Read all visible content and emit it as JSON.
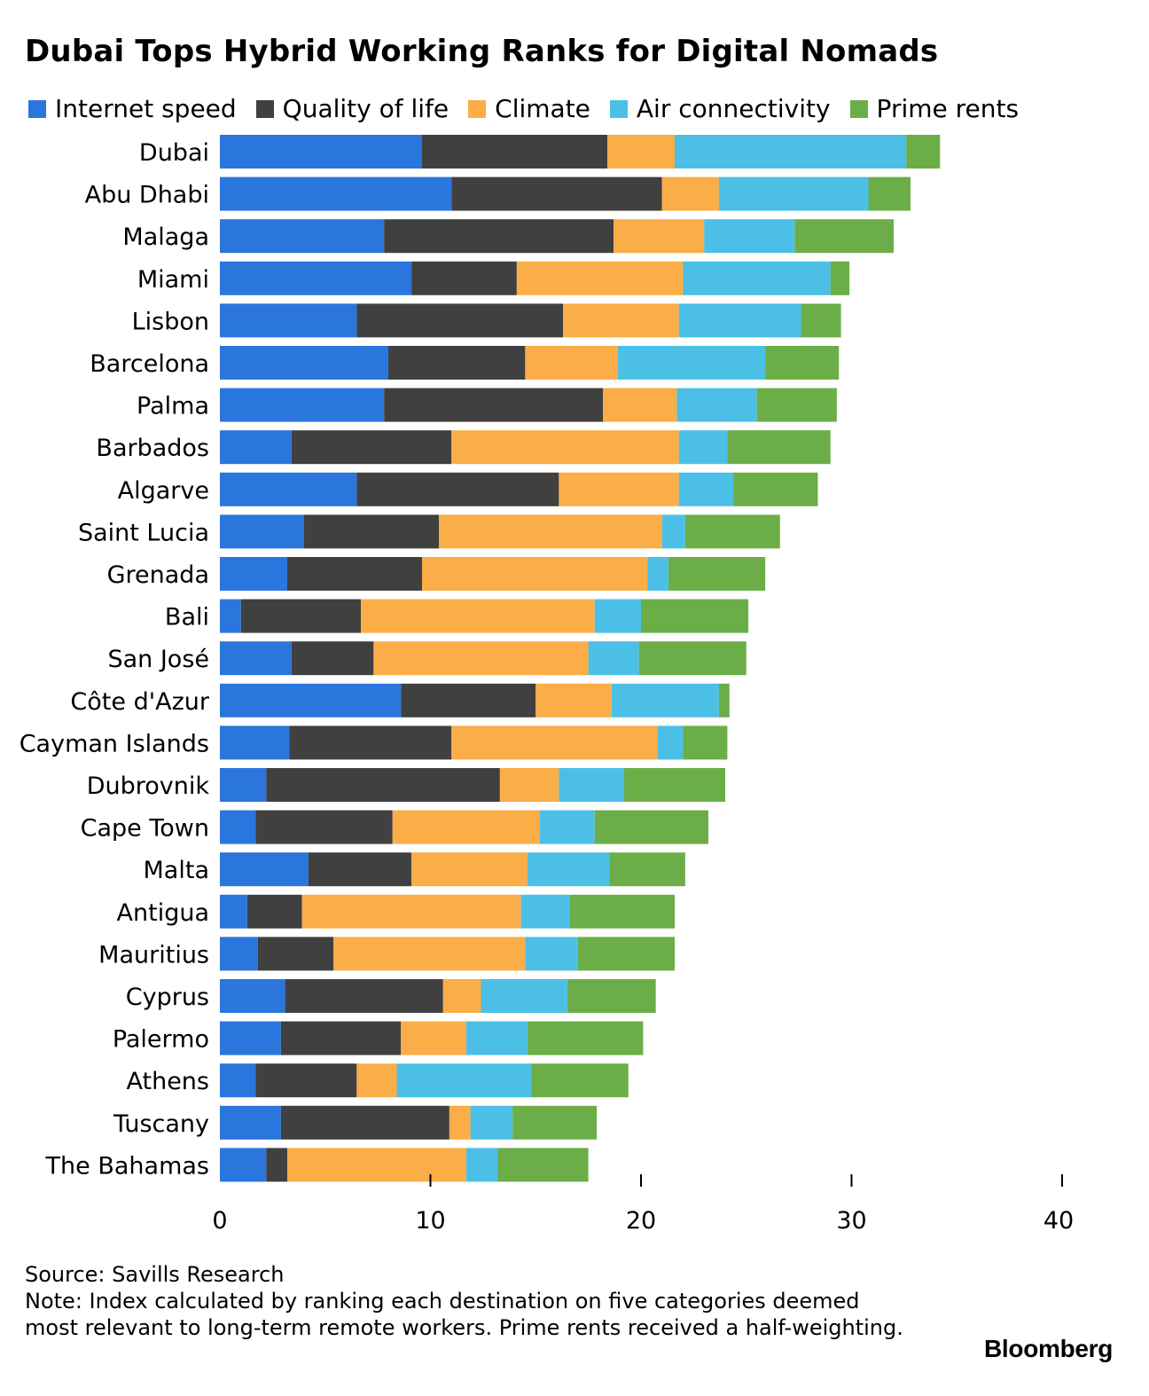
{
  "chart_data": {
    "type": "bar",
    "orientation": "horizontal",
    "stacked": true,
    "title": "Dubai Tops Hybrid Working Ranks for Digital Nomads",
    "xlim": [
      0,
      40
    ],
    "xticks": [
      0,
      10,
      20,
      30,
      40
    ],
    "legend_position": "top",
    "categories": [
      "Dubai",
      "Abu Dhabi",
      "Malaga",
      "Miami",
      "Lisbon",
      "Barcelona",
      "Palma",
      "Barbados",
      "Algarve",
      "Saint Lucia",
      "Grenada",
      "Bali",
      "San José",
      "Côte d'Azur",
      "Cayman Islands",
      "Dubrovnik",
      "Cape Town",
      "Malta",
      "Antigua",
      "Mauritius",
      "Cyprus",
      "Palermo",
      "Athens",
      "Tuscany",
      "The Bahamas"
    ],
    "series": [
      {
        "name": "Internet speed",
        "color": "#2a76dd",
        "values": [
          9.6,
          11.0,
          7.8,
          9.1,
          6.5,
          8.0,
          7.8,
          3.4,
          6.5,
          4.0,
          3.2,
          1.0,
          3.4,
          8.6,
          3.3,
          2.2,
          1.7,
          4.2,
          1.3,
          1.8,
          3.1,
          2.9,
          1.7,
          2.9,
          2.2
        ]
      },
      {
        "name": "Quality of life",
        "color": "#404040",
        "values": [
          8.8,
          10.0,
          10.9,
          5.0,
          9.8,
          6.5,
          10.4,
          7.6,
          9.6,
          6.4,
          6.4,
          5.7,
          3.9,
          6.4,
          7.7,
          11.1,
          6.5,
          4.9,
          2.6,
          3.6,
          7.5,
          5.7,
          4.8,
          8.0,
          1.0
        ]
      },
      {
        "name": "Climate",
        "color": "#fbad48",
        "values": [
          3.2,
          2.7,
          4.3,
          7.9,
          5.5,
          4.4,
          3.5,
          10.8,
          5.7,
          10.6,
          10.7,
          11.1,
          10.2,
          3.6,
          9.8,
          2.8,
          7.0,
          5.5,
          10.4,
          9.1,
          1.8,
          3.1,
          1.9,
          1.0,
          8.5
        ]
      },
      {
        "name": "Air connectivity",
        "color": "#4cbfe6",
        "values": [
          11.0,
          7.1,
          4.3,
          7.0,
          5.8,
          7.0,
          3.8,
          2.3,
          2.6,
          1.1,
          1.0,
          2.2,
          2.4,
          5.1,
          1.2,
          3.1,
          2.6,
          3.9,
          2.3,
          2.5,
          4.1,
          2.9,
          6.4,
          2.0,
          1.5
        ]
      },
      {
        "name": "Prime rents",
        "color": "#6bae48",
        "values": [
          1.6,
          2.0,
          4.7,
          0.9,
          1.9,
          3.5,
          3.8,
          4.9,
          4.0,
          4.5,
          4.6,
          5.1,
          5.1,
          0.5,
          2.1,
          4.8,
          5.4,
          3.6,
          5.0,
          4.6,
          4.2,
          5.5,
          4.6,
          4.0,
          4.3
        ]
      }
    ]
  },
  "footer": {
    "source": "Source: Savills Research",
    "note": "Note: Index calculated by ranking each destination on five categories deemed most relevant to long-term remote workers. Prime rents received a half-weighting.",
    "brand": "Bloomberg"
  }
}
